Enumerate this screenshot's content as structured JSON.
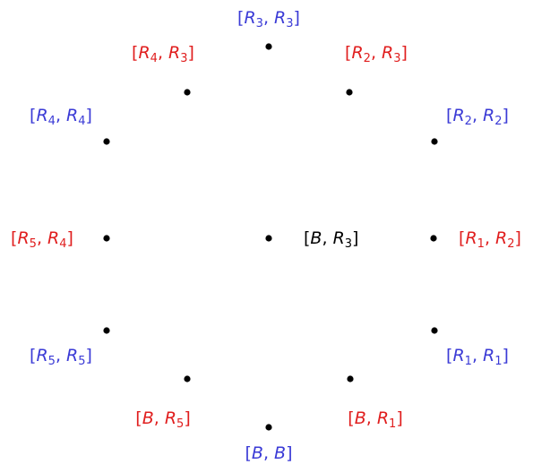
{
  "colors": {
    "blue": "#3b3bd6",
    "red": "#e01e1e",
    "black": "#000000"
  },
  "nodes": [
    {
      "id": "R3R3",
      "color": "blue",
      "tokens": [
        "[",
        {
          "v": "R",
          "s": "3"
        },
        ", ",
        {
          "v": "R",
          "s": "3"
        },
        "]"
      ]
    },
    {
      "id": "R2R3",
      "color": "red",
      "tokens": [
        "[",
        {
          "v": "R",
          "s": "2"
        },
        ", ",
        {
          "v": "R",
          "s": "3"
        },
        "]"
      ]
    },
    {
      "id": "R2R2",
      "color": "blue",
      "tokens": [
        "[",
        {
          "v": "R",
          "s": "2"
        },
        ", ",
        {
          "v": "R",
          "s": "2"
        },
        "]"
      ]
    },
    {
      "id": "R1R2",
      "color": "red",
      "tokens": [
        "[",
        {
          "v": "R",
          "s": "1"
        },
        ", ",
        {
          "v": "R",
          "s": "2"
        },
        "]"
      ]
    },
    {
      "id": "R1R1",
      "color": "blue",
      "tokens": [
        "[",
        {
          "v": "R",
          "s": "1"
        },
        ", ",
        {
          "v": "R",
          "s": "1"
        },
        "]"
      ]
    },
    {
      "id": "BR1",
      "color": "red",
      "tokens": [
        "[",
        {
          "v": "B"
        },
        ", ",
        {
          "v": "R",
          "s": "1"
        },
        "]"
      ]
    },
    {
      "id": "BB",
      "color": "blue",
      "tokens": [
        "[",
        {
          "v": "B"
        },
        ", ",
        {
          "v": "B"
        },
        "]"
      ]
    },
    {
      "id": "BR5",
      "color": "red",
      "tokens": [
        "[",
        {
          "v": "B"
        },
        ", ",
        {
          "v": "R",
          "s": "5"
        },
        "]"
      ]
    },
    {
      "id": "R5R5",
      "color": "blue",
      "tokens": [
        "[",
        {
          "v": "R",
          "s": "5"
        },
        ", ",
        {
          "v": "R",
          "s": "5"
        },
        "]"
      ]
    },
    {
      "id": "R5R4",
      "color": "red",
      "tokens": [
        "[",
        {
          "v": "R",
          "s": "5"
        },
        ", ",
        {
          "v": "R",
          "s": "4"
        },
        "]"
      ]
    },
    {
      "id": "R4R4",
      "color": "blue",
      "tokens": [
        "[",
        {
          "v": "R",
          "s": "4"
        },
        ", ",
        {
          "v": "R",
          "s": "4"
        },
        "]"
      ]
    },
    {
      "id": "R4R3",
      "color": "red",
      "tokens": [
        "[",
        {
          "v": "R",
          "s": "4"
        },
        ", ",
        {
          "v": "R",
          "s": "3"
        },
        "]"
      ]
    },
    {
      "id": "BR3",
      "color": "black",
      "tokens": [
        "[",
        {
          "v": "B"
        },
        ", ",
        {
          "v": "R",
          "s": "3"
        },
        "]"
      ]
    }
  ]
}
